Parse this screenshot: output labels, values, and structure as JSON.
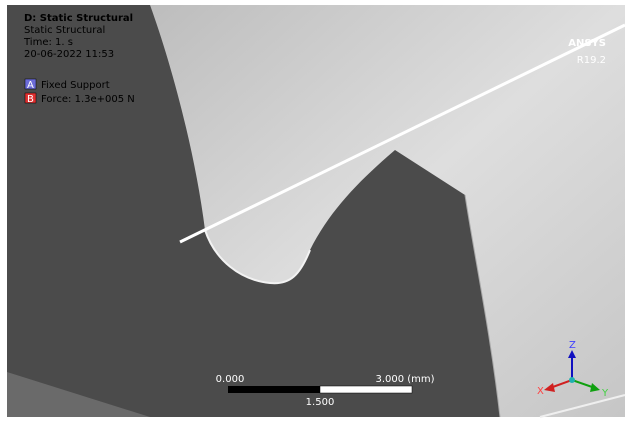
{
  "header": {
    "title": "D: Static Structural",
    "analysis": "Static Structural",
    "time": "Time: 1. s",
    "date": "20-06-2022 11:53"
  },
  "legend": [
    {
      "key": "A",
      "label": "Fixed Support"
    },
    {
      "key": "B",
      "label": "Force: 1.3e+005 N"
    }
  ],
  "logo": {
    "name": "ANSYS",
    "version": "R19.2"
  },
  "scale_bar": {
    "start": "0.000",
    "end": "3.000 (mm)",
    "middle": "1.500"
  },
  "triad": {
    "z": "Z",
    "x": "X",
    "y": "Y"
  }
}
